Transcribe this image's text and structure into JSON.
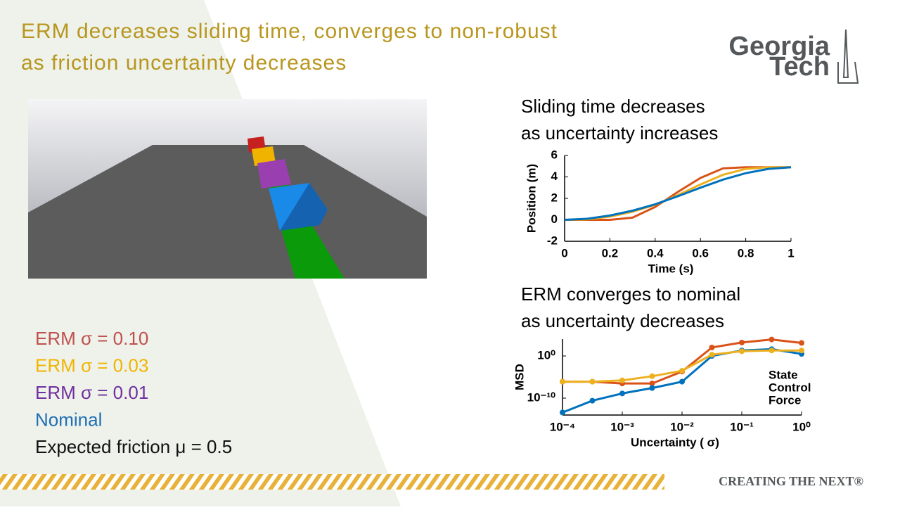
{
  "slide": {
    "title_lines": [
      "ERM decreases sliding time, converges to non-robust",
      "as friction uncertainty decreases"
    ],
    "logo": [
      "Georgia",
      "Tech"
    ],
    "footer": "CREATING THE NEXT®",
    "legend": [
      {
        "text": "ERM σ = 0.10",
        "color": "#c0504d"
      },
      {
        "text": "ERM σ = 0.03",
        "color": "#f0b400"
      },
      {
        "text": "ERM σ = 0.01",
        "color": "#7030a0"
      },
      {
        "text": "Nominal",
        "color": "#1f6fb4"
      },
      {
        "text": "Expected friction μ = 0.5",
        "color": "#111111"
      }
    ]
  },
  "chart_data": [
    {
      "type": "line",
      "heading_lines": [
        "Sliding time decreases",
        "as uncertainty increases"
      ],
      "x_label": "Time (s)",
      "y_label": "Position (m)",
      "x": [
        0,
        0.1,
        0.2,
        0.3,
        0.4,
        0.5,
        0.6,
        0.7,
        0.8,
        0.9,
        1
      ],
      "series": [
        {
          "color": "#d95319",
          "values": [
            0,
            0,
            0,
            0.2,
            1.2,
            2.6,
            3.9,
            4.8,
            4.9,
            4.9,
            4.9
          ]
        },
        {
          "color": "#edb120",
          "values": [
            0,
            0.05,
            0.3,
            0.75,
            1.4,
            2.3,
            3.3,
            4.2,
            4.75,
            4.9,
            4.9
          ]
        },
        {
          "color": "#0072bd",
          "values": [
            0,
            0.1,
            0.4,
            0.85,
            1.45,
            2.2,
            3.0,
            3.75,
            4.35,
            4.75,
            4.9
          ]
        }
      ],
      "xlim": [
        0,
        1
      ],
      "ylim": [
        -2,
        6
      ],
      "xticks": [
        0,
        0.2,
        0.4,
        0.6,
        0.8,
        1
      ],
      "yticks": [
        -2,
        0,
        2,
        4,
        6
      ]
    },
    {
      "type": "line",
      "heading_lines": [
        "ERM converges to nominal",
        "as uncertainty decreases"
      ],
      "x_label": "Uncertainty ( σ)",
      "y_label": "MSD",
      "annotations": [
        "State",
        "Control",
        "Force"
      ],
      "log_x": true,
      "log_y": true,
      "markers": true,
      "x": [
        0.0001,
        0.000316,
        0.001,
        0.00316,
        0.01,
        0.0316,
        0.1,
        0.316,
        1
      ],
      "series": [
        {
          "color": "#d95319",
          "values": [
            8e-07,
            8e-07,
            3e-07,
            3e-07,
            0.0002,
            100,
            1500,
            8000,
            1200
          ]
        },
        {
          "color": "#0072bd",
          "values": [
            4e-14,
            2.5e-11,
            1.3e-09,
            2.5e-08,
            8e-07,
            1,
            20,
            40,
            3
          ]
        },
        {
          "color": "#edb120",
          "values": [
            8e-07,
            8e-07,
            1.6e-06,
            1.6e-05,
            0.0003,
            2,
            13,
            20,
            20
          ]
        }
      ],
      "xlim": [
        0.0001,
        1
      ],
      "ylim": [
        1e-14,
        10000
      ],
      "xticks": [
        {
          "value": 0.0001,
          "label": "10⁻⁴"
        },
        {
          "value": 0.001,
          "label": "10⁻³"
        },
        {
          "value": 0.01,
          "label": "10⁻²"
        },
        {
          "value": 0.1,
          "label": "10⁻¹"
        },
        {
          "value": 1,
          "label": "10⁰"
        }
      ],
      "yticks": [
        {
          "value": 1e-10,
          "label": "10⁻¹⁰"
        },
        {
          "value": 1,
          "label": "10⁰"
        }
      ]
    }
  ]
}
